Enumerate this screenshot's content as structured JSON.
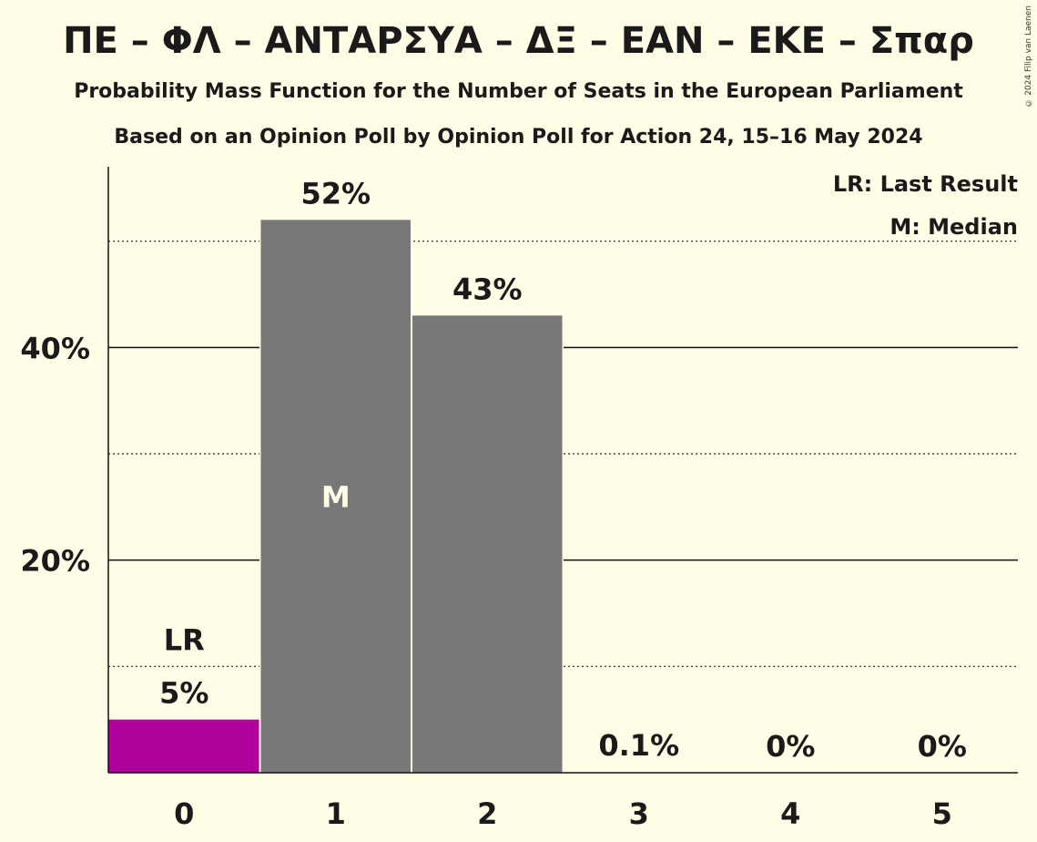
{
  "title": "ΠΕ – ΦΛ – ΑΝΤΑΡΣΥΑ – ΔΞ – ΕΑΝ – ΕΚΕ – Σπαρ",
  "subtitle": "Probability Mass Function for the Number of Seats in the European Parliament",
  "subtitle2": "Based on an Opinion Poll by Opinion Poll for Action 24, 15–16 May 2024",
  "copyright": "© 2024 Filip van Laenen",
  "legend": {
    "last_result": "LR: Last Result",
    "median": "M: Median"
  },
  "colors": {
    "background": "#FFFDE6",
    "bar": "#787878",
    "last_result_bar": "#B0009B",
    "median_text": "#FFFDE6"
  },
  "chart_data": {
    "type": "bar",
    "categories": [
      "0",
      "1",
      "2",
      "3",
      "4",
      "5"
    ],
    "values": [
      5,
      52,
      43,
      0.1,
      0,
      0
    ],
    "value_labels": [
      "5%",
      "52%",
      "43%",
      "0.1%",
      "0%",
      "0%"
    ],
    "ylim": [
      0,
      57
    ],
    "yticks_major": [
      20,
      40
    ],
    "ytick_labels": [
      "20%",
      "40%"
    ],
    "yticks_minor": [
      10,
      30,
      50
    ],
    "last_result_index": 0,
    "last_result_label": "LR",
    "median_index": 1,
    "median_label": "M",
    "xlabel": "",
    "ylabel": ""
  }
}
